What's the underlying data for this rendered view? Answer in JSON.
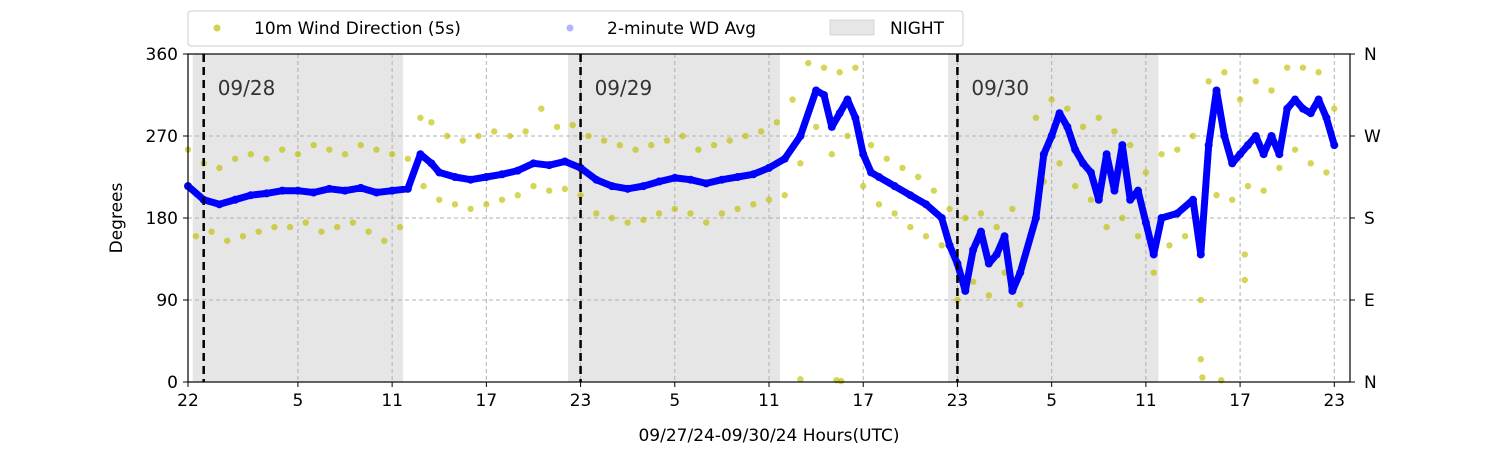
{
  "chart_data": {
    "type": "scatter",
    "title": "",
    "xlabel": "09/27/24-09/30/24  Hours(UTC)",
    "ylabel": "Degrees",
    "x_unit": "hours (UTC) since 09/27 00:00",
    "xlim": [
      22,
      96
    ],
    "ylim": [
      0,
      360
    ],
    "x_ticks": [
      22,
      29,
      35,
      41,
      47,
      53,
      59,
      65,
      71,
      77,
      83,
      89,
      95
    ],
    "x_tick_labels": [
      "22",
      "5",
      "11",
      "17",
      "23",
      "5",
      "11",
      "17",
      "23",
      "5",
      "11",
      "17",
      "23"
    ],
    "y_ticks": [
      0,
      90,
      180,
      270,
      360
    ],
    "y_tick_labels": [
      "0",
      "90",
      "180",
      "270",
      "360"
    ],
    "right_axis_labels": [
      "N",
      "E",
      "S",
      "W",
      "N"
    ],
    "grid": true,
    "legend": {
      "placement": "top-left",
      "entries": [
        {
          "label": "10m Wind Direction (5s)",
          "color": "#bfbf00"
        },
        {
          "label": "2-minute WD Avg",
          "color": "#0000ff"
        },
        {
          "label": "NIGHT",
          "color": "#e6e6e6"
        }
      ]
    },
    "night_periods": [
      [
        22.3,
        35.7
      ],
      [
        46.2,
        59.7
      ],
      [
        70.4,
        83.8
      ]
    ],
    "day_markers": [
      {
        "x": 23,
        "label": "09/28"
      },
      {
        "x": 47,
        "label": "09/29"
      },
      {
        "x": 71,
        "label": "09/30"
      }
    ],
    "series": [
      {
        "name": "2-minute WD Avg",
        "color": "#0000ff",
        "points": [
          [
            22.0,
            215
          ],
          [
            23.0,
            200
          ],
          [
            24.0,
            195
          ],
          [
            25.0,
            200
          ],
          [
            26.0,
            205
          ],
          [
            27.0,
            207
          ],
          [
            28.0,
            210
          ],
          [
            29.0,
            210
          ],
          [
            30.0,
            208
          ],
          [
            31.0,
            212
          ],
          [
            32.0,
            210
          ],
          [
            33.0,
            213
          ],
          [
            34.0,
            208
          ],
          [
            35.0,
            210
          ],
          [
            36.0,
            212
          ],
          [
            36.8,
            250
          ],
          [
            37.5,
            240
          ],
          [
            38.0,
            230
          ],
          [
            39.0,
            225
          ],
          [
            40.0,
            222
          ],
          [
            41.0,
            225
          ],
          [
            42.0,
            228
          ],
          [
            43.0,
            232
          ],
          [
            44.0,
            240
          ],
          [
            45.0,
            238
          ],
          [
            46.0,
            242
          ],
          [
            47.0,
            235
          ],
          [
            48.0,
            222
          ],
          [
            49.0,
            215
          ],
          [
            50.0,
            212
          ],
          [
            51.0,
            215
          ],
          [
            52.0,
            220
          ],
          [
            53.0,
            224
          ],
          [
            54.0,
            222
          ],
          [
            55.0,
            218
          ],
          [
            56.0,
            222
          ],
          [
            57.0,
            225
          ],
          [
            58.0,
            228
          ],
          [
            59.0,
            235
          ],
          [
            60.0,
            245
          ],
          [
            61.0,
            270
          ],
          [
            62.0,
            320
          ],
          [
            62.5,
            315
          ],
          [
            63.0,
            280
          ],
          [
            63.5,
            295
          ],
          [
            64.0,
            310
          ],
          [
            64.5,
            290
          ],
          [
            65.0,
            250
          ],
          [
            65.5,
            230
          ],
          [
            66.0,
            225
          ],
          [
            67.0,
            215
          ],
          [
            68.0,
            205
          ],
          [
            69.0,
            195
          ],
          [
            70.0,
            180
          ],
          [
            70.5,
            150
          ],
          [
            71.0,
            130
          ],
          [
            71.5,
            100
          ],
          [
            72.0,
            145
          ],
          [
            72.5,
            165
          ],
          [
            73.0,
            130
          ],
          [
            73.5,
            140
          ],
          [
            74.0,
            160
          ],
          [
            74.5,
            100
          ],
          [
            75.0,
            120
          ],
          [
            76.0,
            180
          ],
          [
            76.5,
            250
          ],
          [
            77.0,
            270
          ],
          [
            77.5,
            295
          ],
          [
            78.0,
            280
          ],
          [
            78.5,
            255
          ],
          [
            79.0,
            240
          ],
          [
            79.5,
            230
          ],
          [
            80.0,
            200
          ],
          [
            80.5,
            250
          ],
          [
            81.0,
            210
          ],
          [
            81.5,
            260
          ],
          [
            82.0,
            200
          ],
          [
            82.5,
            210
          ],
          [
            83.0,
            175
          ],
          [
            83.5,
            140
          ],
          [
            84.0,
            180
          ],
          [
            85.0,
            185
          ],
          [
            86.0,
            200
          ],
          [
            86.5,
            140
          ],
          [
            87.0,
            260
          ],
          [
            87.5,
            320
          ],
          [
            88.0,
            270
          ],
          [
            88.5,
            240
          ],
          [
            89.0,
            250
          ],
          [
            89.5,
            260
          ],
          [
            90.0,
            270
          ],
          [
            90.5,
            250
          ],
          [
            91.0,
            270
          ],
          [
            91.5,
            250
          ],
          [
            92.0,
            300
          ],
          [
            92.5,
            310
          ],
          [
            93.0,
            300
          ],
          [
            93.5,
            295
          ],
          [
            94.0,
            310
          ],
          [
            94.5,
            290
          ],
          [
            95.0,
            260
          ]
        ]
      },
      {
        "name": "10m Wind Direction (5s)",
        "color": "#bfbf00",
        "points": [
          [
            22.0,
            255
          ],
          [
            22.5,
            160
          ],
          [
            23.0,
            240
          ],
          [
            23.5,
            165
          ],
          [
            24.0,
            235
          ],
          [
            24.5,
            155
          ],
          [
            25.0,
            245
          ],
          [
            25.5,
            160
          ],
          [
            26.0,
            250
          ],
          [
            26.5,
            165
          ],
          [
            27.0,
            245
          ],
          [
            27.5,
            170
          ],
          [
            28.0,
            255
          ],
          [
            28.5,
            170
          ],
          [
            29.0,
            250
          ],
          [
            29.5,
            175
          ],
          [
            30.0,
            260
          ],
          [
            30.5,
            165
          ],
          [
            31.0,
            255
          ],
          [
            31.5,
            170
          ],
          [
            32.0,
            250
          ],
          [
            32.5,
            175
          ],
          [
            33.0,
            260
          ],
          [
            33.5,
            165
          ],
          [
            34.0,
            255
          ],
          [
            34.5,
            155
          ],
          [
            35.0,
            250
          ],
          [
            35.5,
            170
          ],
          [
            36.0,
            245
          ],
          [
            36.8,
            290
          ],
          [
            37.0,
            215
          ],
          [
            37.5,
            285
          ],
          [
            38.0,
            200
          ],
          [
            38.5,
            270
          ],
          [
            39.0,
            195
          ],
          [
            39.5,
            265
          ],
          [
            40.0,
            190
          ],
          [
            40.5,
            270
          ],
          [
            41.0,
            195
          ],
          [
            41.5,
            275
          ],
          [
            42.0,
            200
          ],
          [
            42.5,
            270
          ],
          [
            43.0,
            205
          ],
          [
            43.5,
            275
          ],
          [
            44.0,
            215
          ],
          [
            44.5,
            300
          ],
          [
            45.0,
            210
          ],
          [
            45.5,
            280
          ],
          [
            46.0,
            212
          ],
          [
            46.5,
            282
          ],
          [
            47.0,
            205
          ],
          [
            47.5,
            270
          ],
          [
            48.0,
            185
          ],
          [
            48.5,
            265
          ],
          [
            49.0,
            180
          ],
          [
            49.5,
            260
          ],
          [
            50.0,
            175
          ],
          [
            50.5,
            255
          ],
          [
            51.0,
            178
          ],
          [
            51.5,
            260
          ],
          [
            52.0,
            185
          ],
          [
            52.5,
            265
          ],
          [
            53.0,
            190
          ],
          [
            53.5,
            270
          ],
          [
            54.0,
            185
          ],
          [
            54.5,
            255
          ],
          [
            55.0,
            175
          ],
          [
            55.5,
            260
          ],
          [
            56.0,
            185
          ],
          [
            56.5,
            265
          ],
          [
            57.0,
            190
          ],
          [
            57.5,
            270
          ],
          [
            58.0,
            195
          ],
          [
            58.5,
            275
          ],
          [
            59.0,
            200
          ],
          [
            59.5,
            285
          ],
          [
            60.0,
            205
          ],
          [
            60.5,
            310
          ],
          [
            61.0,
            240
          ],
          [
            61.5,
            350
          ],
          [
            62.0,
            280
          ],
          [
            62.5,
            345
          ],
          [
            63.0,
            250
          ],
          [
            63.5,
            340
          ],
          [
            64.0,
            270
          ],
          [
            64.5,
            345
          ],
          [
            65.0,
            215
          ],
          [
            65.5,
            260
          ],
          [
            66.0,
            195
          ],
          [
            66.5,
            245
          ],
          [
            67.0,
            185
          ],
          [
            67.5,
            235
          ],
          [
            68.0,
            170
          ],
          [
            68.5,
            225
          ],
          [
            69.0,
            160
          ],
          [
            69.5,
            210
          ],
          [
            70.0,
            150
          ],
          [
            70.5,
            190
          ],
          [
            71.0,
            90
          ],
          [
            71.5,
            180
          ],
          [
            72.0,
            110
          ],
          [
            72.5,
            185
          ],
          [
            73.0,
            95
          ],
          [
            73.5,
            170
          ],
          [
            74.0,
            120
          ],
          [
            74.5,
            190
          ],
          [
            75.0,
            85
          ],
          [
            76.0,
            290
          ],
          [
            76.5,
            220
          ],
          [
            77.0,
            310
          ],
          [
            77.5,
            240
          ],
          [
            78.0,
            300
          ],
          [
            78.5,
            215
          ],
          [
            79.0,
            280
          ],
          [
            79.5,
            200
          ],
          [
            80.0,
            290
          ],
          [
            80.5,
            170
          ],
          [
            81.0,
            275
          ],
          [
            81.5,
            180
          ],
          [
            82.0,
            260
          ],
          [
            82.5,
            160
          ],
          [
            83.0,
            230
          ],
          [
            83.5,
            120
          ],
          [
            84.0,
            250
          ],
          [
            84.5,
            150
          ],
          [
            85.0,
            255
          ],
          [
            85.5,
            160
          ],
          [
            86.0,
            270
          ],
          [
            86.5,
            90
          ],
          [
            87.0,
            330
          ],
          [
            87.5,
            205
          ],
          [
            88.0,
            340
          ],
          [
            88.5,
            200
          ],
          [
            89.0,
            310
          ],
          [
            89.5,
            215
          ],
          [
            90.0,
            330
          ],
          [
            90.5,
            210
          ],
          [
            91.0,
            320
          ],
          [
            91.5,
            235
          ],
          [
            92.0,
            345
          ],
          [
            92.5,
            255
          ],
          [
            93.0,
            345
          ],
          [
            93.5,
            240
          ],
          [
            94.0,
            340
          ],
          [
            94.5,
            230
          ],
          [
            95.0,
            300
          ],
          [
            61.0,
            3
          ],
          [
            63.3,
            2
          ],
          [
            63.6,
            1
          ],
          [
            86.5,
            25
          ],
          [
            86.6,
            5
          ],
          [
            87.8,
            2
          ],
          [
            89.3,
            140
          ],
          [
            89.3,
            112
          ]
        ]
      }
    ]
  }
}
